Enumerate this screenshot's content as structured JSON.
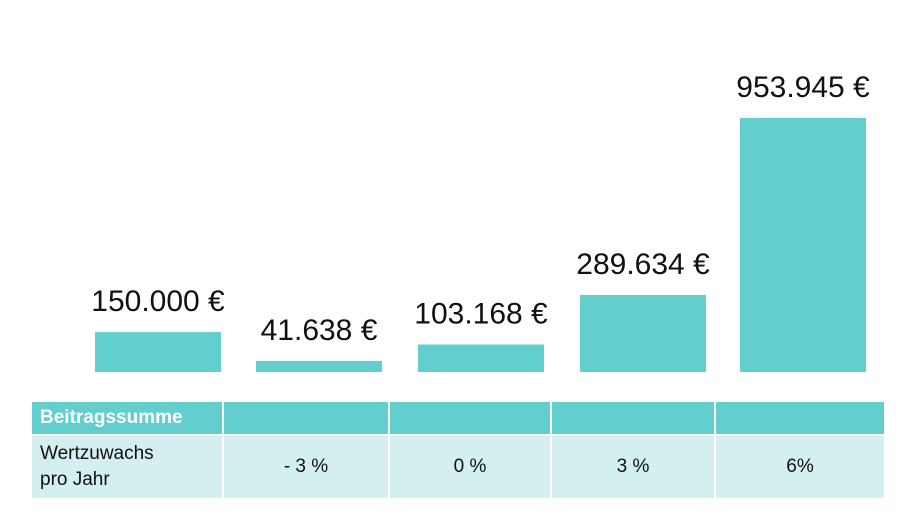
{
  "chart_data": {
    "type": "bar",
    "categories": [
      "Beitragssumme",
      "- 3 %",
      "0 %",
      "3 %",
      "6%"
    ],
    "values": [
      150000,
      41638,
      103168,
      289634,
      953945
    ],
    "value_labels": [
      "150.000 €",
      "41.638 €",
      "103.168 €",
      "289.634 €",
      "953.945 €"
    ],
    "bar_color": "#62cfce",
    "title": "",
    "xlabel": "",
    "ylabel": "",
    "ylim": [
      0,
      953945
    ],
    "grid": false,
    "legend": "none"
  },
  "table": {
    "header_label": "Beitragssumme",
    "row_label_line1": "Wertzuwachs",
    "row_label_line2": "pro Jahr",
    "rates": [
      "- 3 %",
      "0 %",
      "3 %",
      "6%"
    ]
  },
  "colors": {
    "header_bg": "#62cfce",
    "row_bg": "#d3efef",
    "header_text": "#ffffff",
    "text": "#111111"
  }
}
